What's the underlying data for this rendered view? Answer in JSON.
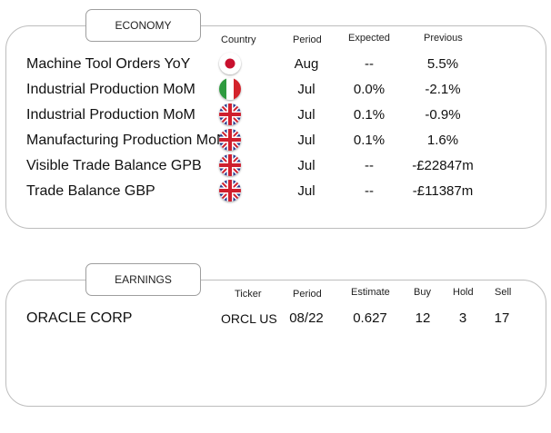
{
  "economy": {
    "tab_label": "ECONOMY",
    "headers": {
      "country": "Country",
      "period": "Period",
      "expected": "Expected",
      "previous": "Previous"
    },
    "rows": [
      {
        "name": "Machine Tool Orders YoY",
        "flag": "japan-flag",
        "period": "Aug",
        "expected": "--",
        "previous": "5.5%"
      },
      {
        "name": "Industrial Production MoM",
        "flag": "italy-flag",
        "period": "Jul",
        "expected": "0.0%",
        "previous": "-2.1%"
      },
      {
        "name": "Industrial Production MoM",
        "flag": "uk-flag",
        "period": "Jul",
        "expected": "0.1%",
        "previous": "-0.9%"
      },
      {
        "name": "Manufacturing Production MoM",
        "flag": "uk-flag",
        "period": "Jul",
        "expected": "0.1%",
        "previous": "1.6%"
      },
      {
        "name": "Visible Trade Balance GPB",
        "flag": "uk-flag",
        "period": "Jul",
        "expected": "--",
        "previous": "-£22847m"
      },
      {
        "name": "Trade Balance GBP",
        "flag": "uk-flag",
        "period": "Jul",
        "expected": "--",
        "previous": "-£11387m"
      }
    ]
  },
  "earnings": {
    "tab_label": "EARNINGS",
    "headers": {
      "ticker": "Ticker",
      "period": "Period",
      "estimate": "Estimate",
      "buy": "Buy",
      "hold": "Hold",
      "sell": "Sell"
    },
    "rows": [
      {
        "name": "ORACLE CORP",
        "ticker": "ORCL US",
        "period": "08/22",
        "estimate": "0.627",
        "buy": "12",
        "hold": "3",
        "sell": "17"
      }
    ]
  },
  "colors": {
    "panel_border": "#bdbdbd",
    "uk_blue": "#2b3c8f",
    "uk_red": "#cf1f2e",
    "italy_green": "#2e9a3f",
    "italy_red": "#d3232c",
    "japan_red": "#c8102e"
  }
}
